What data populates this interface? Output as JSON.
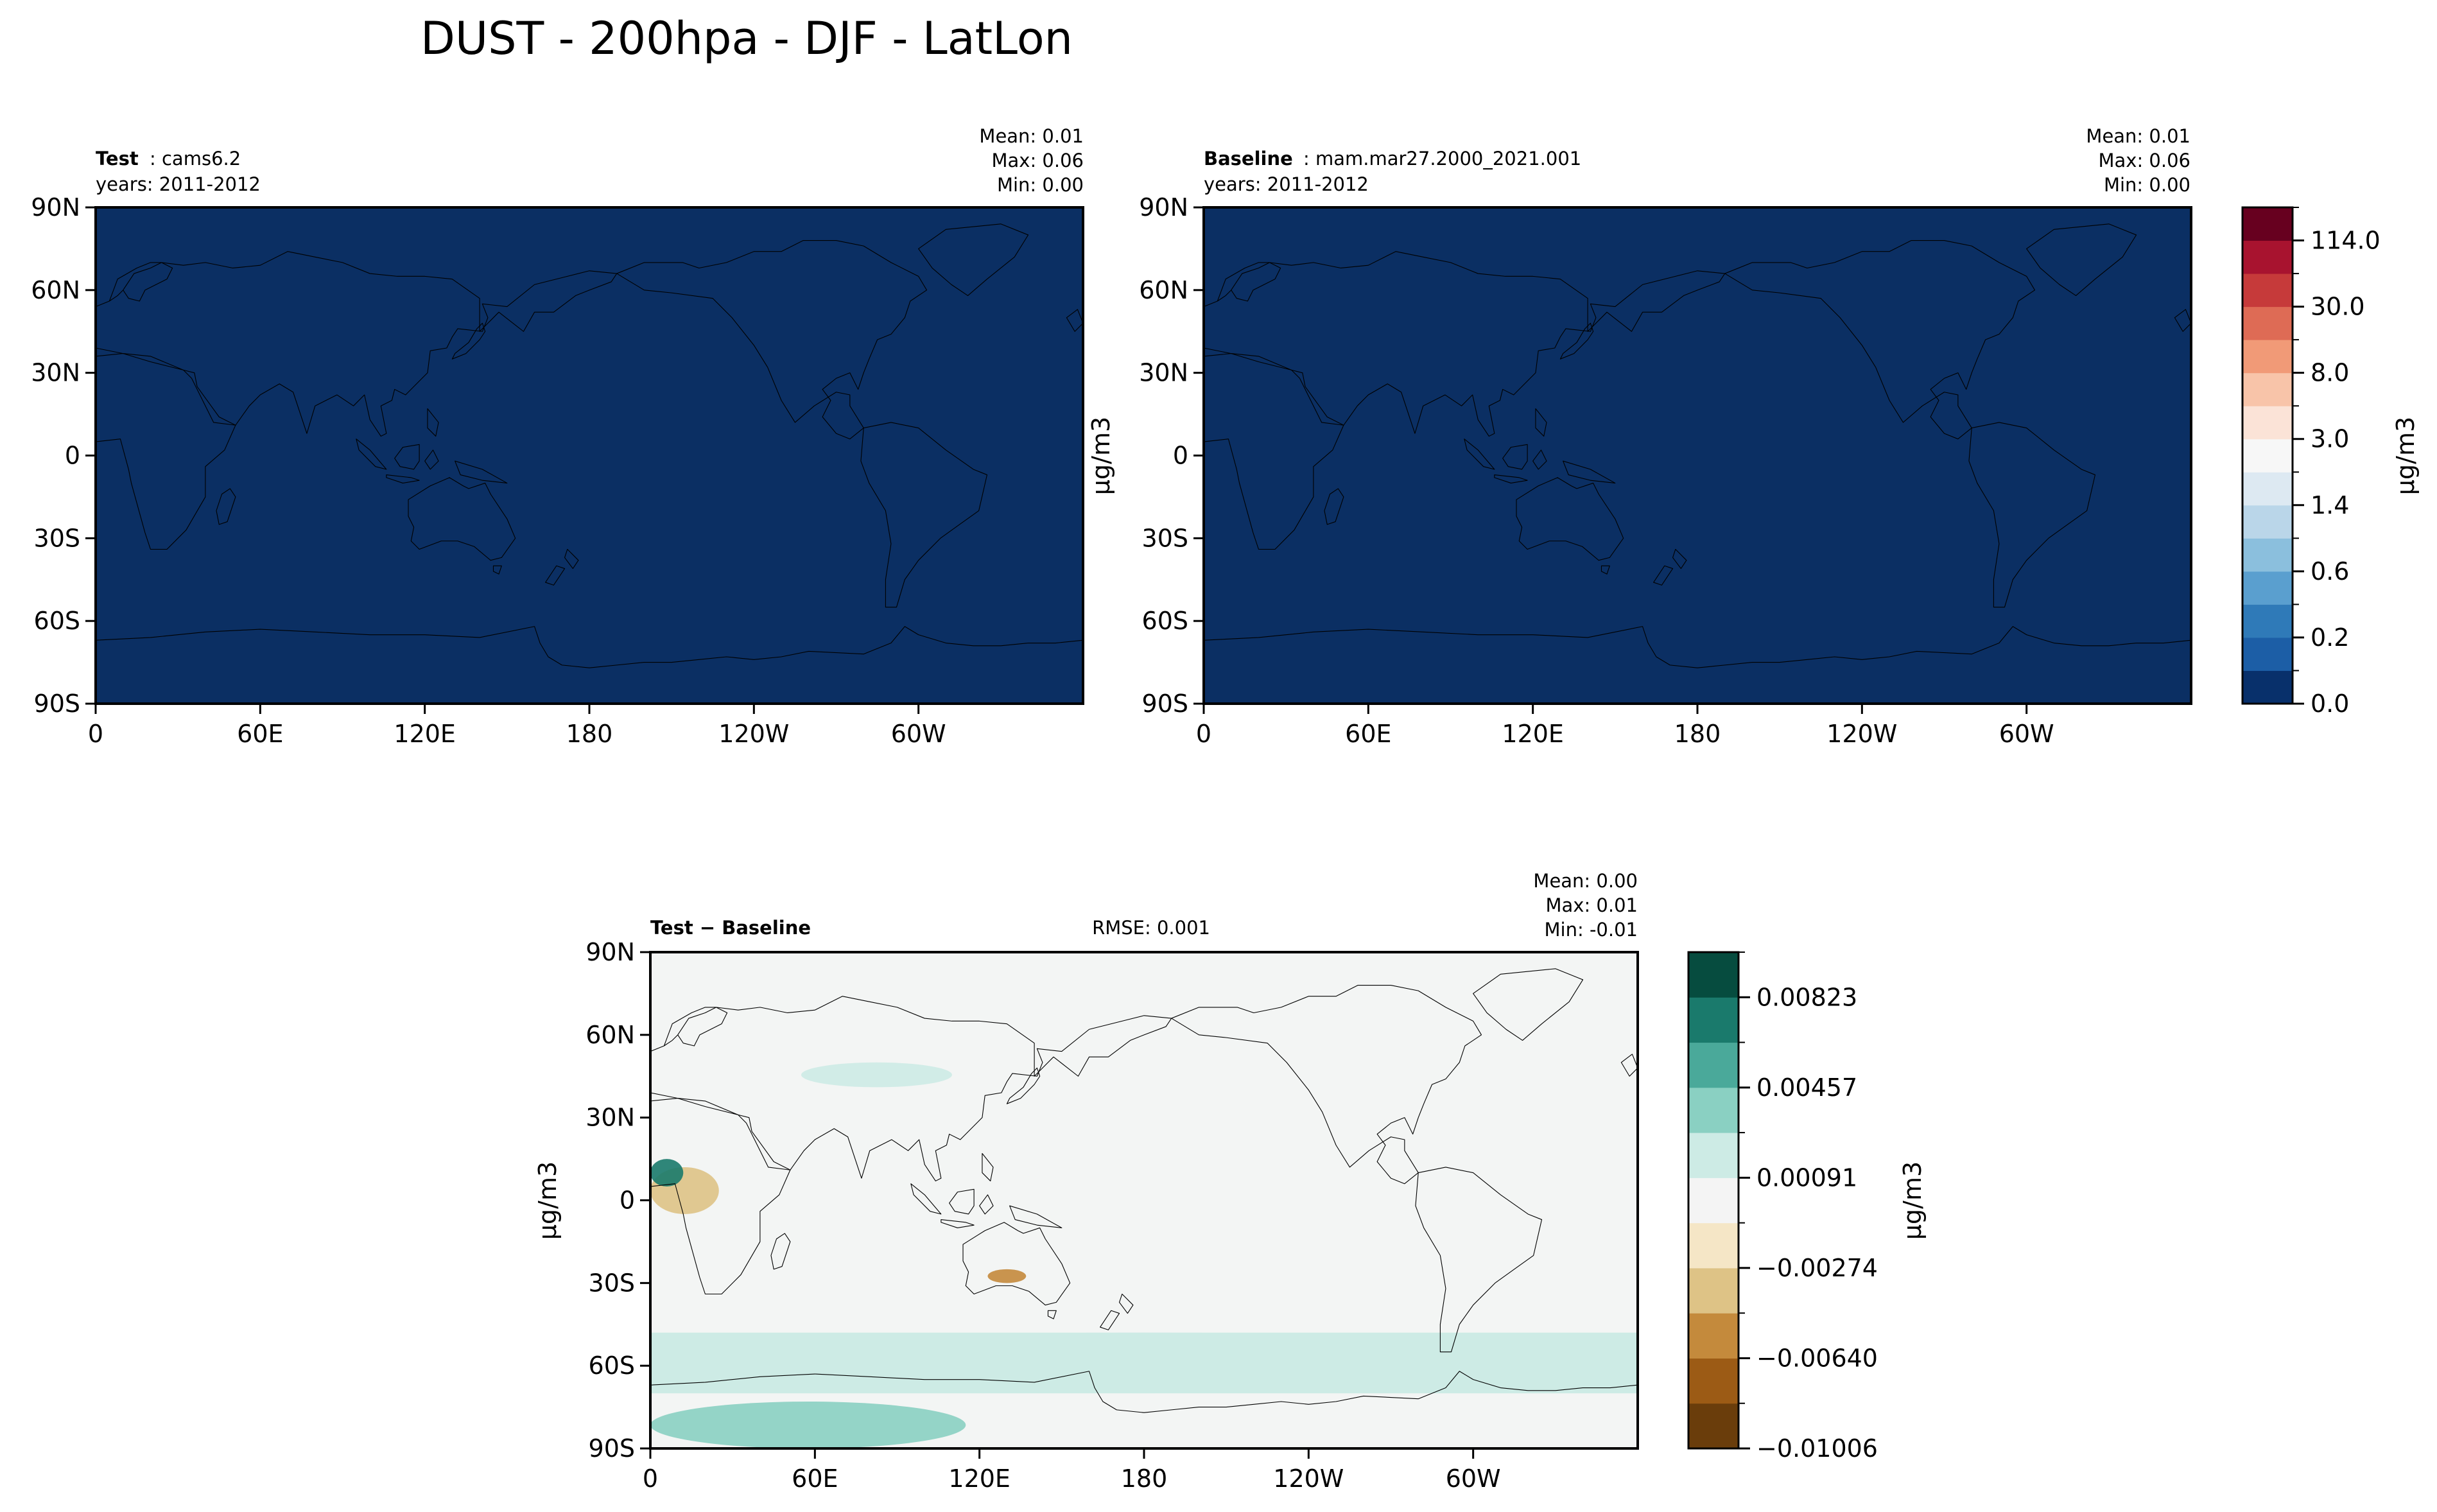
{
  "figure": {
    "title": "DUST - 200hpa - DJF - LatLon"
  },
  "colors": {
    "test_fill": "#0b2f63",
    "coast": "#000000",
    "diff_background": "#f3f5f4"
  },
  "chart_data": [
    {
      "type": "heatmap",
      "id": "test",
      "title_bold": "Test",
      "title_rest": ": cams6.2",
      "subtitle": "years: 2011-2012",
      "stats": [
        {
          "label": "Mean:",
          "value": "0.01"
        },
        {
          "label": "Max:",
          "value": "0.06"
        },
        {
          "label": "Min:",
          "value": "0.00"
        }
      ],
      "xticks": [
        "0",
        "60E",
        "120E",
        "180",
        "120W",
        "60W"
      ],
      "yticks": [
        "90N",
        "60N",
        "30N",
        "0",
        "30S",
        "60S",
        "90S"
      ],
      "ylabel": "",
      "xlim": [
        0,
        360
      ],
      "ylim": [
        -90,
        90
      ],
      "field": "uniform",
      "field_value_max": 0.06
    },
    {
      "type": "heatmap",
      "id": "baseline",
      "title_bold": "Baseline",
      "title_rest": ": mam.mar27.2000_2021.001",
      "subtitle": "years: 2011-2012",
      "stats": [
        {
          "label": "Mean:",
          "value": "0.01"
        },
        {
          "label": "Max:",
          "value": "0.06"
        },
        {
          "label": "Min:",
          "value": "0.00"
        }
      ],
      "xticks": [
        "0",
        "60E",
        "120E",
        "180",
        "120W",
        "60W"
      ],
      "yticks": [
        "90N",
        "60N",
        "30N",
        "0",
        "30S",
        "60S",
        "90S"
      ],
      "ylabel": "μg/m3",
      "xlim": [
        0,
        360
      ],
      "ylim": [
        -90,
        90
      ],
      "field": "uniform",
      "field_value_max": 0.06
    },
    {
      "type": "heatmap",
      "id": "diff",
      "title_bold": "Test − Baseline",
      "rmse": "RMSE: 0.001",
      "stats": [
        {
          "label": "Mean:",
          "value": "0.00"
        },
        {
          "label": "Max:",
          "value": "0.01"
        },
        {
          "label": "Min:",
          "value": "-0.01"
        }
      ],
      "xticks": [
        "0",
        "60E",
        "120E",
        "180",
        "120W",
        "60W"
      ],
      "yticks": [
        "90N",
        "60N",
        "30N",
        "0",
        "30S",
        "60S",
        "90S"
      ],
      "ylabel": "μg/m3",
      "xlim": [
        0,
        360
      ],
      "ylim": [
        -90,
        90
      ],
      "field": "difference",
      "features": [
        {
          "kind": "positive",
          "level": 1,
          "desc": "Southern Ocean band",
          "lon": [
            0,
            360
          ],
          "lat": [
            -70,
            -48
          ]
        },
        {
          "kind": "positive",
          "level": 2,
          "desc": "Antarctic coast",
          "lon": [
            0,
            115
          ],
          "lat": [
            -90,
            -73
          ]
        },
        {
          "kind": "positive",
          "level": 1,
          "desc": "Eurasia patch",
          "lon": [
            55,
            110
          ],
          "lat": [
            41,
            50
          ]
        },
        {
          "kind": "negative",
          "level": 3,
          "desc": "Australia",
          "lon": [
            123,
            137
          ],
          "lat": [
            -30,
            -25
          ]
        },
        {
          "kind": "negative",
          "level": 2,
          "desc": "West Africa",
          "lon": [
            0,
            25
          ],
          "lat": [
            -5,
            12
          ]
        },
        {
          "kind": "positive",
          "level": 4,
          "desc": "West Africa coast",
          "lon": [
            0,
            12
          ],
          "lat": [
            5,
            15
          ]
        }
      ]
    }
  ],
  "colorbars": {
    "main": {
      "label": "μg/m3",
      "colors": [
        "#08306b",
        "#1c5ea6",
        "#2f7ab8",
        "#5a9fcf",
        "#8bbfdd",
        "#bad6e9",
        "#dde9f2",
        "#f7f7f7",
        "#fbe3d7",
        "#f8c4a9",
        "#f19a77",
        "#de6b55",
        "#c63a3a",
        "#a8132f",
        "#67001f"
      ],
      "tick_labels": [
        "0.0",
        "0.2",
        "0.6",
        "1.4",
        "3.0",
        "8.0",
        "30.0",
        "114.0"
      ]
    },
    "diff": {
      "label": "μg/m3",
      "colors": [
        "#6a3d0b",
        "#9c5b15",
        "#c48a3c",
        "#dec386",
        "#f5e6c6",
        "#f4f4f4",
        "#cdebe5",
        "#8ad0c2",
        "#4aa99a",
        "#1a7a6c",
        "#064c3f"
      ],
      "tick_labels": [
        "−0.01006",
        "−0.00640",
        "−0.00274",
        "0.00091",
        "0.00457",
        "0.00823"
      ]
    }
  }
}
